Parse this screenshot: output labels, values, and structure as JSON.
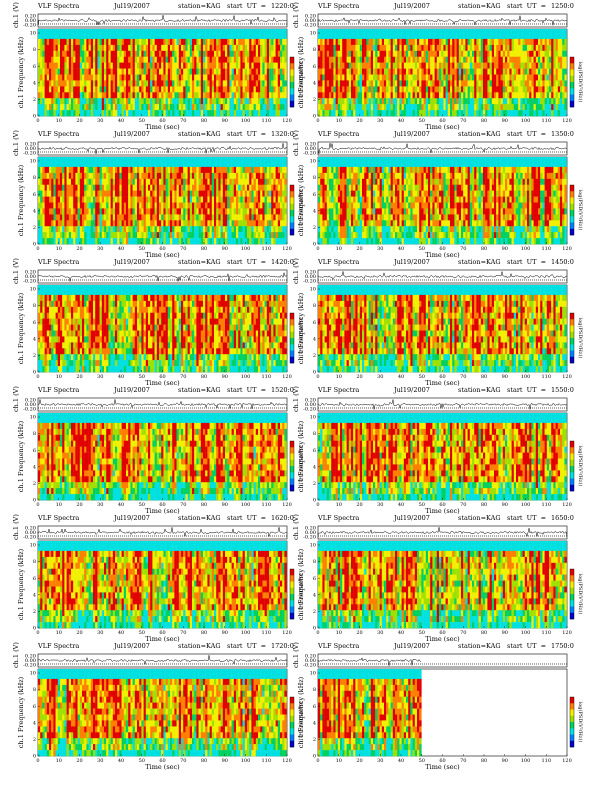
{
  "page": {
    "title": "VLF Spectra"
  },
  "common": {
    "spectra_label": "VLF Spectra",
    "date": "Jul19/2007",
    "station": "station=KAG",
    "start_prefix": "start  UT  =",
    "ch_label": "ch.1 (V)",
    "freq_label": "ch.1 Frequency (kHz)",
    "time_label": "Time  (sec)",
    "cbar_label": "log(PSD(V²/Hz))",
    "ch_ticks": [
      "0.20",
      "0.00",
      "-0.20"
    ],
    "freq_ticks": [
      "10",
      "8",
      "6",
      "4",
      "2",
      "0"
    ],
    "time_ticks": [
      "0",
      "10",
      "20",
      "30",
      "40",
      "50",
      "60",
      "70",
      "80",
      "90",
      "100",
      "110",
      "120"
    ]
  },
  "panels": [
    {
      "start": "1220:0",
      "date_display": "Jul19/2007"
    },
    {
      "start": "1250:0",
      "date_display": "Jul19/2007"
    },
    {
      "start": "1320:0",
      "date_display": "Jul19/2007"
    },
    {
      "start": "1350:0",
      "date_display": "Jul19/2007"
    },
    {
      "start": "1420:0",
      "date_display": "Jul19/2007"
    },
    {
      "start": "1450:0",
      "date_display": "Jul19/2007"
    },
    {
      "start": "1520:0",
      "date_display": "Jul19/2007"
    },
    {
      "start": "1550:0",
      "date_display": "Jul19/2007"
    },
    {
      "start": "1620:0",
      "date_display": "Jul19/2007"
    },
    {
      "start": "1650:0",
      "date_display": "Jul19/2007"
    },
    {
      "start": "1720:0",
      "date_display": "Jul19/2007"
    },
    {
      "start": "1750:0",
      "date_display": "Jul19/2007"
    }
  ],
  "chart_data": {
    "type": "heatmap",
    "title": "VLF Spectra",
    "xlabel": "Time  (sec)",
    "ylabel": "ch.1 Frequency (kHz)",
    "xlim": [
      0,
      120
    ],
    "ylim": [
      0,
      10
    ],
    "colorbar_label": "log(PSD(V²/Hz))",
    "colormap": [
      "#0000c8",
      "#0080ff",
      "#00e0e0",
      "#00d060",
      "#a0e000",
      "#f0f000",
      "#ff8000",
      "#e00000"
    ],
    "panels": [
      {
        "start_ut": "1220:0",
        "duration_sec": 120
      },
      {
        "start_ut": "1250:0",
        "duration_sec": 120
      },
      {
        "start_ut": "1320:0",
        "duration_sec": 120
      },
      {
        "start_ut": "1350:0",
        "duration_sec": 120
      },
      {
        "start_ut": "1420:0",
        "duration_sec": 120
      },
      {
        "start_ut": "1450:0",
        "duration_sec": 120
      },
      {
        "start_ut": "1520:0",
        "duration_sec": 120
      },
      {
        "start_ut": "1550:0",
        "duration_sec": 120
      },
      {
        "start_ut": "1620:0",
        "duration_sec": 120
      },
      {
        "start_ut": "1650:0",
        "duration_sec": 120
      },
      {
        "start_ut": "1720:0",
        "duration_sec": 120
      },
      {
        "start_ut": "1750:0",
        "duration_sec": 50
      }
    ]
  }
}
